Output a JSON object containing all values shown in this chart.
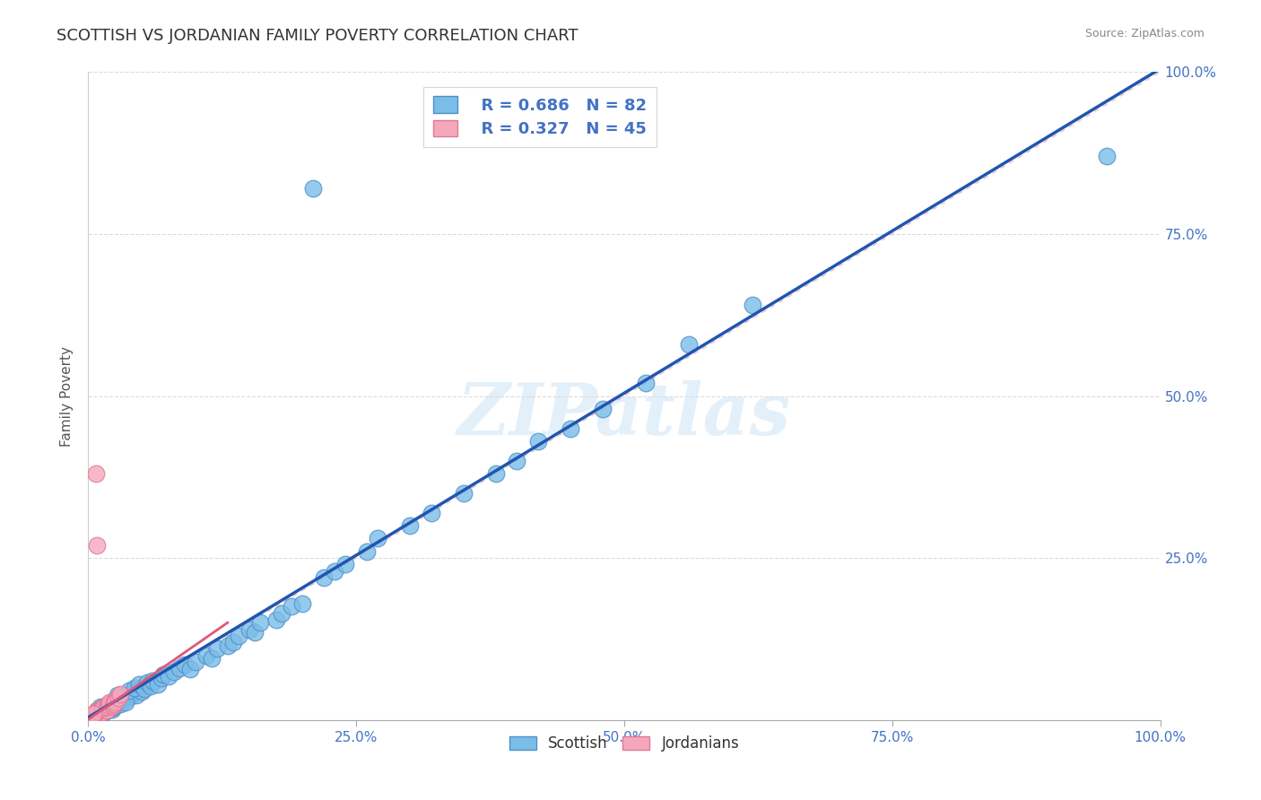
{
  "title": "SCOTTISH VS JORDANIAN FAMILY POVERTY CORRELATION CHART",
  "source": "Source: ZipAtlas.com",
  "ylabel": "Family Poverty",
  "xlim": [
    0,
    1
  ],
  "ylim": [
    0,
    1
  ],
  "xticks": [
    0,
    0.25,
    0.5,
    0.75,
    1.0
  ],
  "yticks": [
    0,
    0.25,
    0.5,
    0.75,
    1.0
  ],
  "xticklabels": [
    "0.0%",
    "25.0%",
    "50.0%",
    "75.0%",
    "100.0%"
  ],
  "yticklabels_right": [
    "",
    "25.0%",
    "50.0%",
    "75.0%",
    "100.0%"
  ],
  "scottish_color": "#7abde8",
  "jordanian_color": "#f5a8bc",
  "scottish_edge": "#5090c8",
  "jordanian_edge": "#e07898",
  "regression_blue_color": "#2055b0",
  "regression_pink_color": "#e05878",
  "diagonal_color": "#e8b0b8",
  "legend_blue_r": "R = 0.686",
  "legend_blue_n": "N = 82",
  "legend_pink_r": "R = 0.327",
  "legend_pink_n": "N = 45",
  "watermark": "ZIPatlas",
  "tick_color": "#4472c4",
  "title_color": "#333333",
  "source_color": "#888888",
  "scottish_x": [
    0.005,
    0.008,
    0.01,
    0.012,
    0.015,
    0.008,
    0.01,
    0.013,
    0.007,
    0.009,
    0.015,
    0.018,
    0.02,
    0.022,
    0.025,
    0.012,
    0.016,
    0.019,
    0.023,
    0.011,
    0.025,
    0.028,
    0.03,
    0.033,
    0.035,
    0.022,
    0.027,
    0.031,
    0.038,
    0.04,
    0.042,
    0.045,
    0.048,
    0.05,
    0.035,
    0.038,
    0.043,
    0.047,
    0.052,
    0.055,
    0.058,
    0.06,
    0.065,
    0.068,
    0.07,
    0.075,
    0.08,
    0.085,
    0.09,
    0.095,
    0.1,
    0.11,
    0.115,
    0.12,
    0.13,
    0.135,
    0.14,
    0.15,
    0.155,
    0.16,
    0.175,
    0.18,
    0.19,
    0.2,
    0.21,
    0.22,
    0.23,
    0.24,
    0.26,
    0.27,
    0.3,
    0.32,
    0.35,
    0.38,
    0.4,
    0.42,
    0.45,
    0.48,
    0.52,
    0.56,
    0.62,
    0.95
  ],
  "scottish_y": [
    0.005,
    0.008,
    0.01,
    0.007,
    0.012,
    0.015,
    0.009,
    0.011,
    0.006,
    0.01,
    0.018,
    0.015,
    0.02,
    0.017,
    0.022,
    0.013,
    0.016,
    0.025,
    0.019,
    0.021,
    0.028,
    0.03,
    0.025,
    0.035,
    0.032,
    0.02,
    0.038,
    0.033,
    0.04,
    0.037,
    0.042,
    0.038,
    0.048,
    0.044,
    0.028,
    0.045,
    0.05,
    0.055,
    0.048,
    0.058,
    0.052,
    0.06,
    0.055,
    0.065,
    0.07,
    0.068,
    0.075,
    0.08,
    0.085,
    0.078,
    0.09,
    0.1,
    0.095,
    0.11,
    0.115,
    0.12,
    0.13,
    0.14,
    0.135,
    0.15,
    0.155,
    0.165,
    0.175,
    0.18,
    0.82,
    0.22,
    0.23,
    0.24,
    0.26,
    0.28,
    0.3,
    0.32,
    0.35,
    0.38,
    0.4,
    0.43,
    0.45,
    0.48,
    0.52,
    0.58,
    0.64,
    0.87
  ],
  "jordanian_x": [
    0.005,
    0.006,
    0.007,
    0.008,
    0.005,
    0.007,
    0.009,
    0.006,
    0.008,
    0.007,
    0.01,
    0.011,
    0.009,
    0.012,
    0.01,
    0.008,
    0.013,
    0.011,
    0.009,
    0.012,
    0.015,
    0.014,
    0.013,
    0.016,
    0.015,
    0.017,
    0.016,
    0.014,
    0.018,
    0.017,
    0.02,
    0.019,
    0.021,
    0.022,
    0.02,
    0.023,
    0.025,
    0.024,
    0.026,
    0.025,
    0.028,
    0.007,
    0.03,
    0.008,
    0.005
  ],
  "jordanian_y": [
    0.005,
    0.007,
    0.006,
    0.009,
    0.008,
    0.01,
    0.007,
    0.011,
    0.006,
    0.009,
    0.012,
    0.01,
    0.013,
    0.011,
    0.014,
    0.015,
    0.012,
    0.016,
    0.013,
    0.017,
    0.018,
    0.016,
    0.019,
    0.017,
    0.02,
    0.015,
    0.021,
    0.019,
    0.022,
    0.02,
    0.025,
    0.023,
    0.026,
    0.024,
    0.028,
    0.022,
    0.03,
    0.025,
    0.032,
    0.028,
    0.035,
    0.38,
    0.04,
    0.27,
    0.01
  ]
}
